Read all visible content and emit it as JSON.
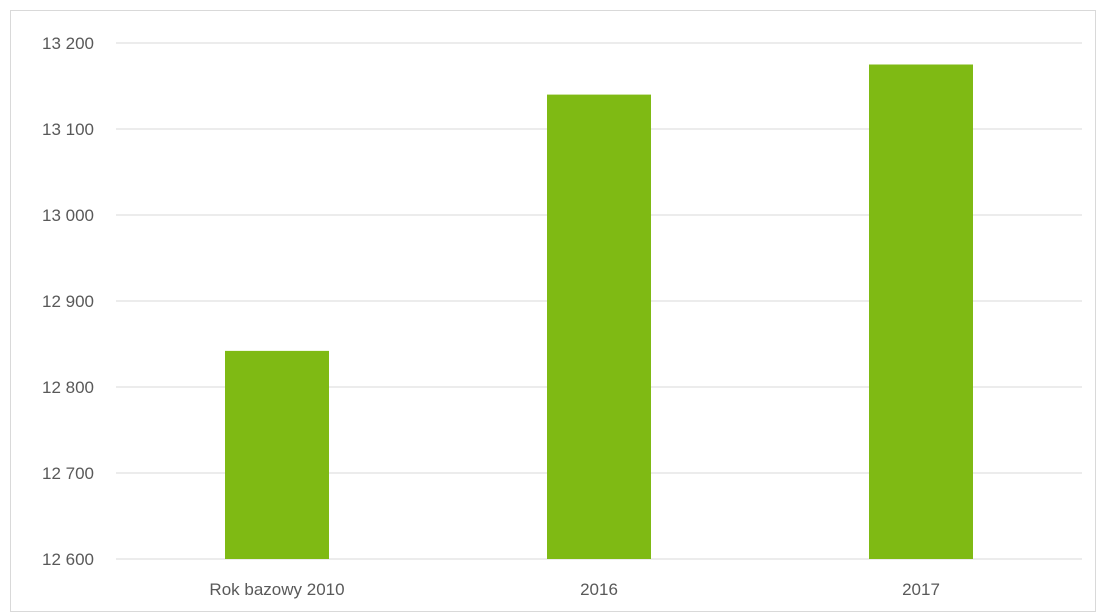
{
  "chart_data": {
    "type": "bar",
    "categories": [
      "Rok bazowy 2010",
      "2016",
      "2017"
    ],
    "values": [
      12842,
      13140,
      13175
    ],
    "ylim": [
      12600,
      13200
    ],
    "yticks": [
      12600,
      12700,
      12800,
      12900,
      13000,
      13100,
      13200
    ],
    "ytick_labels": [
      "12 600",
      "12 700",
      "12 800",
      "12 900",
      "13 000",
      "13 100",
      "13 200"
    ],
    "grid": true,
    "bar_color": "#7fba14",
    "gridline_color": "#d9d9d9"
  }
}
